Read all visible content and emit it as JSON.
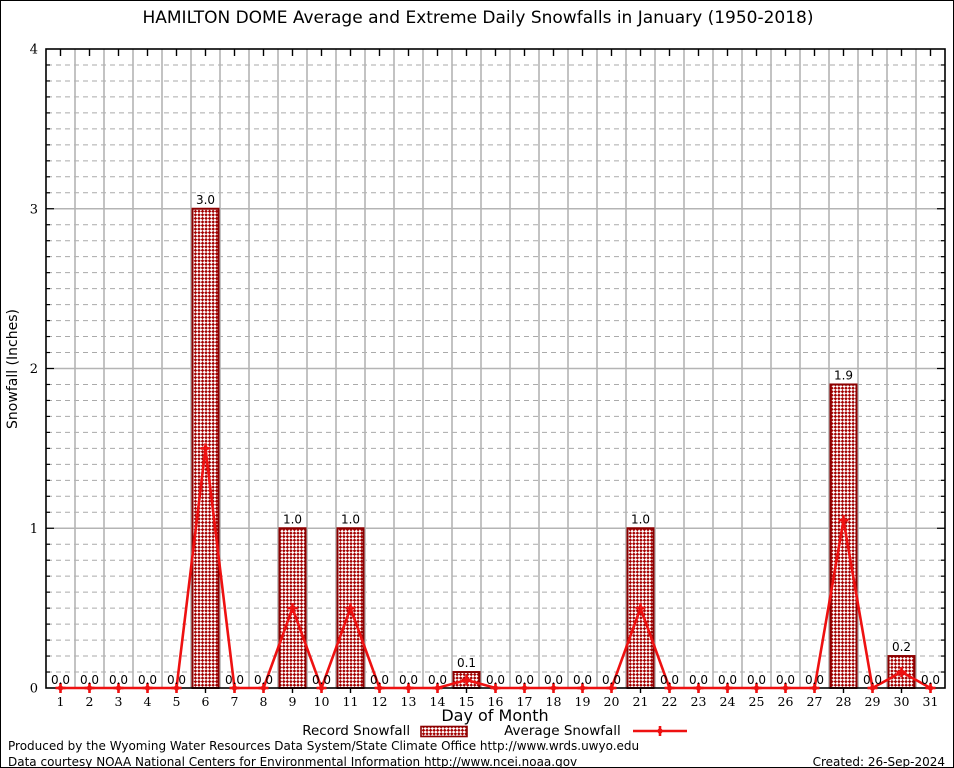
{
  "title": "HAMILTON DOME Average and Extreme Daily Snowfalls in January (1950-2018)",
  "footer": {
    "line1": "Produced by the Wyoming Water Resources Data System/State Climate Office http://www.wrds.uwyo.edu",
    "line2": "Data courtesy NOAA National Centers for Environmental Information http://www.ncei.noaa.gov",
    "created": "Created: 26-Sep-2024"
  },
  "colors": {
    "bar_border": "#8b0000",
    "bar_hatch": "#a40000",
    "line": "#ee1111",
    "grid_major": "#b4b4b4",
    "grid_minor": "#aaaaaa",
    "axis": "#000000"
  },
  "chart_data": {
    "type": "bar",
    "title": "HAMILTON DOME Average and Extreme Daily Snowfalls in January (1950-2018)",
    "xlabel": "Day of Month",
    "ylabel": "Snowfall (Inches)",
    "ylim": [
      0,
      4
    ],
    "yticks": [
      0,
      1,
      2,
      3,
      4
    ],
    "ytick_minor_step": 0.1,
    "grid": "major-solid-minor-dashed",
    "legend_position": "bottom",
    "x": [
      1,
      2,
      3,
      4,
      5,
      6,
      7,
      8,
      9,
      10,
      11,
      12,
      13,
      14,
      15,
      16,
      17,
      18,
      19,
      20,
      21,
      22,
      23,
      24,
      25,
      26,
      27,
      28,
      29,
      30,
      31
    ],
    "series": [
      {
        "name": "Record Snowfall",
        "type": "bar",
        "values": [
          0,
          0,
          0,
          0,
          0,
          3.0,
          0,
          0,
          1.0,
          0,
          1.0,
          0,
          0,
          0,
          0.1,
          0,
          0,
          0,
          0,
          0,
          1.0,
          0,
          0,
          0,
          0,
          0,
          0,
          1.9,
          0,
          0.2,
          0
        ],
        "labels": [
          "0.0",
          "0.0",
          "0.0",
          "0.0",
          "0.0",
          "3.0",
          "0.0",
          "0.0",
          "1.0",
          "0.0",
          "1.0",
          "0.0",
          "0.0",
          "0.0",
          "0.1",
          "0.0",
          "0.0",
          "0.0",
          "0.0",
          "0.0",
          "1.0",
          "0.0",
          "0.0",
          "0.0",
          "0.0",
          "0.0",
          "0.0",
          "1.9",
          "0.0",
          "0.2",
          "0.0"
        ]
      },
      {
        "name": "Average Snowfall",
        "type": "line",
        "values": [
          0,
          0,
          0,
          0,
          0,
          1.5,
          0,
          0,
          0.5,
          0,
          0.5,
          0,
          0,
          0,
          0.05,
          0,
          0,
          0,
          0,
          0,
          0.5,
          0,
          0,
          0,
          0,
          0,
          0,
          1.05,
          0,
          0.1,
          0
        ]
      }
    ]
  }
}
